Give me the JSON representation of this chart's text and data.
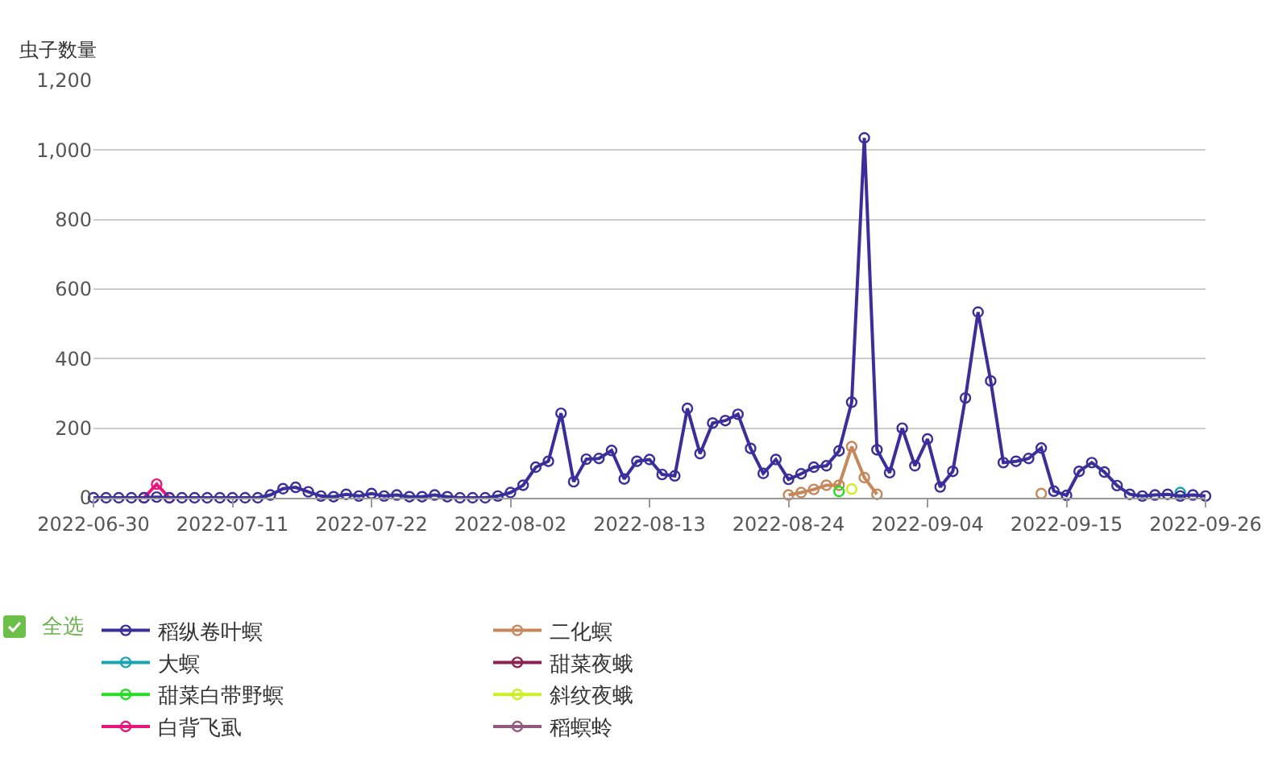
{
  "chart_data": {
    "type": "line",
    "ylabel": "虫子数量",
    "x": [
      "2022-06-30",
      "2022-07-01",
      "2022-07-02",
      "2022-07-03",
      "2022-07-04",
      "2022-07-05",
      "2022-07-06",
      "2022-07-07",
      "2022-07-08",
      "2022-07-09",
      "2022-07-10",
      "2022-07-11",
      "2022-07-12",
      "2022-07-13",
      "2022-07-14",
      "2022-07-15",
      "2022-07-16",
      "2022-07-17",
      "2022-07-18",
      "2022-07-19",
      "2022-07-20",
      "2022-07-21",
      "2022-07-22",
      "2022-07-23",
      "2022-07-24",
      "2022-07-25",
      "2022-07-26",
      "2022-07-27",
      "2022-07-28",
      "2022-07-29",
      "2022-07-30",
      "2022-07-31",
      "2022-08-01",
      "2022-08-02",
      "2022-08-03",
      "2022-08-04",
      "2022-08-05",
      "2022-08-06",
      "2022-08-07",
      "2022-08-08",
      "2022-08-09",
      "2022-08-10",
      "2022-08-11",
      "2022-08-12",
      "2022-08-13",
      "2022-08-14",
      "2022-08-15",
      "2022-08-16",
      "2022-08-17",
      "2022-08-18",
      "2022-08-19",
      "2022-08-20",
      "2022-08-21",
      "2022-08-22",
      "2022-08-23",
      "2022-08-24",
      "2022-08-25",
      "2022-08-26",
      "2022-08-27",
      "2022-08-28",
      "2022-08-29",
      "2022-08-30",
      "2022-08-31",
      "2022-09-01",
      "2022-09-02",
      "2022-09-03",
      "2022-09-04",
      "2022-09-05",
      "2022-09-06",
      "2022-09-07",
      "2022-09-08",
      "2022-09-09",
      "2022-09-10",
      "2022-09-11",
      "2022-09-12",
      "2022-09-13",
      "2022-09-14",
      "2022-09-15",
      "2022-09-16",
      "2022-09-17",
      "2022-09-18",
      "2022-09-19",
      "2022-09-20",
      "2022-09-21",
      "2022-09-22",
      "2022-09-23",
      "2022-09-24",
      "2022-09-25",
      "2022-09-26"
    ],
    "series": [
      {
        "name": "稻纵卷叶螟",
        "color": "#3a2f9a",
        "values": [
          0,
          0,
          0,
          0,
          0,
          2,
          0,
          0,
          0,
          0,
          0,
          0,
          0,
          0,
          8,
          26,
          30,
          17,
          5,
          3,
          10,
          5,
          12,
          5,
          8,
          3,
          3,
          8,
          3,
          0,
          0,
          0,
          5,
          15,
          36,
          88,
          105,
          243,
          46,
          111,
          113,
          136,
          54,
          105,
          110,
          67,
          63,
          257,
          127,
          215,
          222,
          240,
          142,
          70,
          110,
          53,
          69,
          88,
          92,
          135,
          275,
          1035,
          138,
          72,
          200,
          92,
          169,
          31,
          76,
          287,
          534,
          336,
          101,
          105,
          113,
          143,
          19,
          7,
          76,
          101,
          74,
          35,
          10,
          5,
          8,
          10,
          5,
          8,
          5
        ]
      },
      {
        "name": "二化螟",
        "color": "#c8875a",
        "values": [
          null,
          null,
          null,
          null,
          null,
          null,
          null,
          null,
          null,
          null,
          null,
          null,
          null,
          null,
          null,
          null,
          null,
          null,
          null,
          null,
          null,
          null,
          null,
          null,
          null,
          null,
          null,
          null,
          null,
          null,
          null,
          null,
          null,
          null,
          null,
          null,
          null,
          null,
          null,
          null,
          null,
          null,
          null,
          null,
          null,
          null,
          null,
          null,
          null,
          null,
          null,
          null,
          null,
          null,
          null,
          8,
          15,
          24,
          36,
          36,
          147,
          58,
          10,
          null,
          null,
          null,
          null,
          null,
          null,
          null,
          null,
          null,
          null,
          null,
          null,
          12,
          null,
          null,
          null,
          null,
          null,
          null,
          null,
          null,
          null,
          null,
          null,
          null,
          null
        ]
      },
      {
        "name": "大螟",
        "color": "#1aa3b0",
        "values": [
          null,
          null,
          null,
          null,
          null,
          null,
          null,
          null,
          null,
          null,
          null,
          null,
          null,
          null,
          null,
          null,
          null,
          null,
          null,
          null,
          null,
          null,
          null,
          null,
          null,
          null,
          null,
          null,
          null,
          null,
          null,
          null,
          null,
          null,
          null,
          null,
          null,
          null,
          null,
          null,
          null,
          null,
          null,
          null,
          null,
          null,
          null,
          null,
          null,
          null,
          null,
          null,
          null,
          null,
          null,
          null,
          null,
          null,
          null,
          null,
          null,
          null,
          null,
          null,
          null,
          null,
          null,
          null,
          null,
          null,
          null,
          null,
          null,
          null,
          null,
          null,
          null,
          null,
          null,
          null,
          null,
          null,
          null,
          null,
          null,
          null,
          15,
          null,
          null
        ]
      },
      {
        "name": "甜菜夜蛾",
        "color": "#8b2252",
        "values": [
          null,
          null,
          null,
          null,
          null,
          null,
          null,
          null,
          null,
          null,
          null,
          null,
          null,
          null,
          null,
          null,
          null,
          null,
          null,
          null,
          null,
          null,
          null,
          null,
          null,
          null,
          null,
          null,
          null,
          null,
          null,
          null,
          null,
          null,
          null,
          null,
          null,
          null,
          null,
          null,
          null,
          null,
          null,
          null,
          null,
          null,
          null,
          null,
          null,
          null,
          null,
          null,
          null,
          null,
          null,
          null,
          null,
          null,
          null,
          null,
          null,
          null,
          null,
          null,
          null,
          null,
          null,
          null,
          null,
          null,
          null,
          null,
          null,
          null,
          null,
          null,
          null,
          null,
          null,
          null,
          null,
          null,
          null,
          null,
          null,
          null,
          null,
          null,
          null
        ]
      },
      {
        "name": "甜菜白带野螟",
        "color": "#22dd22",
        "values": [
          null,
          null,
          null,
          null,
          null,
          null,
          null,
          null,
          null,
          null,
          null,
          null,
          null,
          null,
          null,
          null,
          null,
          null,
          null,
          null,
          null,
          null,
          null,
          null,
          null,
          null,
          null,
          null,
          null,
          null,
          null,
          null,
          null,
          null,
          null,
          null,
          null,
          null,
          null,
          null,
          null,
          null,
          null,
          null,
          null,
          null,
          null,
          null,
          null,
          null,
          null,
          null,
          null,
          null,
          null,
          null,
          null,
          null,
          null,
          18,
          null,
          null,
          null,
          null,
          null,
          null,
          null,
          null,
          null,
          null,
          null,
          null,
          null,
          null,
          null,
          null,
          null,
          null,
          null,
          null,
          null,
          null,
          null,
          null,
          null,
          null,
          null,
          null,
          null
        ]
      },
      {
        "name": "斜纹夜蛾",
        "color": "#ccee22",
        "values": [
          null,
          null,
          null,
          null,
          null,
          null,
          null,
          null,
          null,
          null,
          null,
          null,
          null,
          null,
          null,
          null,
          null,
          null,
          null,
          null,
          null,
          null,
          null,
          null,
          null,
          null,
          null,
          null,
          null,
          null,
          null,
          null,
          null,
          null,
          null,
          null,
          null,
          null,
          null,
          null,
          null,
          null,
          null,
          null,
          null,
          null,
          null,
          null,
          null,
          null,
          null,
          null,
          null,
          null,
          null,
          null,
          null,
          null,
          null,
          null,
          25,
          null,
          null,
          null,
          null,
          null,
          null,
          null,
          null,
          null,
          null,
          null,
          null,
          null,
          null,
          null,
          null,
          null,
          null,
          null,
          null,
          null,
          null,
          null,
          null,
          null,
          null,
          null,
          null
        ]
      },
      {
        "name": "白背飞虱",
        "color": "#e8157a",
        "values": [
          null,
          null,
          null,
          null,
          0,
          39,
          0,
          null,
          null,
          null,
          null,
          null,
          null,
          null,
          null,
          null,
          null,
          null,
          null,
          null,
          null,
          null,
          null,
          null,
          null,
          null,
          null,
          null,
          null,
          null,
          null,
          null,
          null,
          null,
          null,
          null,
          null,
          null,
          null,
          null,
          null,
          null,
          null,
          null,
          null,
          null,
          null,
          null,
          null,
          null,
          null,
          null,
          null,
          null,
          null,
          null,
          null,
          null,
          null,
          null,
          null,
          null,
          null,
          null,
          null,
          null,
          null,
          null,
          null,
          null,
          null,
          null,
          null,
          null,
          null,
          null,
          null,
          null,
          null,
          null,
          null,
          null,
          null,
          null,
          null,
          null,
          null,
          null,
          null
        ]
      },
      {
        "name": "稻螟蛉",
        "color": "#935a80",
        "values": [
          null,
          null,
          null,
          null,
          null,
          null,
          null,
          null,
          null,
          null,
          null,
          null,
          null,
          null,
          null,
          null,
          null,
          null,
          null,
          null,
          null,
          null,
          null,
          null,
          null,
          null,
          null,
          null,
          null,
          null,
          null,
          null,
          null,
          null,
          null,
          null,
          null,
          null,
          null,
          null,
          null,
          null,
          null,
          null,
          null,
          null,
          null,
          null,
          null,
          null,
          null,
          null,
          null,
          null,
          null,
          null,
          null,
          null,
          null,
          null,
          null,
          null,
          null,
          null,
          null,
          null,
          null,
          null,
          null,
          null,
          null,
          null,
          null,
          null,
          null,
          null,
          null,
          null,
          null,
          null,
          null,
          null,
          null,
          null,
          null,
          null,
          null,
          null,
          null
        ]
      }
    ],
    "xlim": [
      "2022-06-30",
      "2022-09-26"
    ],
    "xticks": [
      "2022-06-30",
      "2022-07-11",
      "2022-07-22",
      "2022-08-02",
      "2022-08-13",
      "2022-08-24",
      "2022-09-04",
      "2022-09-15",
      "2022-09-26"
    ],
    "ylim": [
      0,
      1200
    ],
    "yticks": [
      0,
      200,
      400,
      600,
      800,
      {
        "value": 1000,
        "label": "1,000"
      },
      {
        "value": 1200,
        "label": "1,200"
      }
    ],
    "grid": "y",
    "legend": "bottom",
    "marker": "circle",
    "line_style": "solid",
    "annotations": [
      "全选"
    ]
  }
}
